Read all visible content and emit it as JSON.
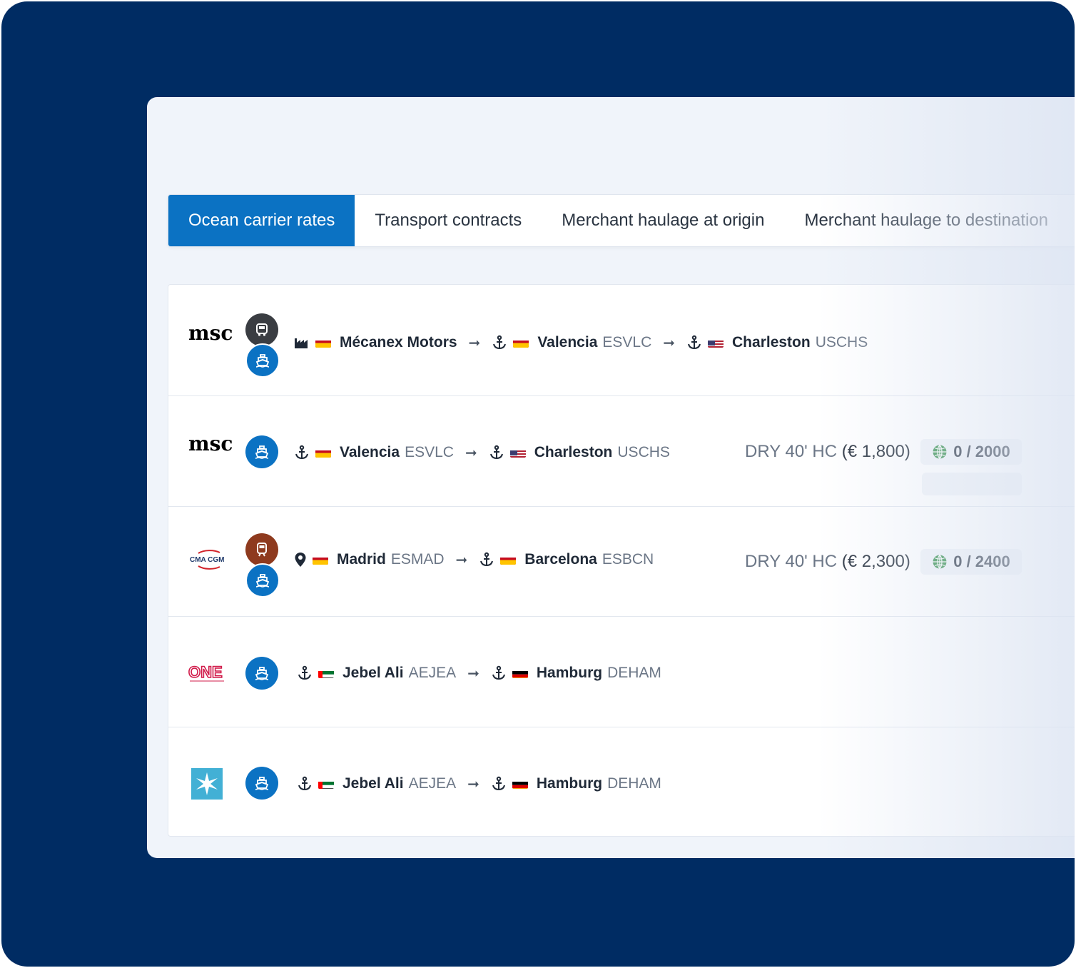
{
  "tabs": [
    {
      "label": "Ocean carrier rates",
      "active": true
    },
    {
      "label": "Transport contracts",
      "active": false
    },
    {
      "label": "Merchant haulage at origin",
      "active": false
    },
    {
      "label": "Merchant haulage to destination",
      "active": false
    }
  ],
  "rows": [
    {
      "carrier": "msc",
      "modes": [
        "truck-icon",
        "ship-icon"
      ],
      "origin": {
        "icon": "factory-icon",
        "flag": "es",
        "name": "Mécanex Motors",
        "code": ""
      },
      "via": {
        "icon": "anchor-icon",
        "flag": "es",
        "name": "Valencia",
        "code": "ESVLC"
      },
      "destination": {
        "icon": "anchor-icon",
        "flag": "us",
        "name": "Charleston",
        "code": "USCHS"
      }
    },
    {
      "carrier": "msc",
      "modes": [
        "ship-icon"
      ],
      "origin": {
        "icon": "anchor-icon",
        "flag": "es",
        "name": "Valencia",
        "code": "ESVLC"
      },
      "destination": {
        "icon": "anchor-icon",
        "flag": "us",
        "name": "Charleston",
        "code": "USCHS"
      },
      "equipment": "DRY 40' HC",
      "price": "(€ 1,800)",
      "allocation": "0 / 2000"
    },
    {
      "carrier": "cma-cgm",
      "modes": [
        "train-icon",
        "ship-icon"
      ],
      "origin": {
        "icon": "pin-icon",
        "flag": "es",
        "name": "Madrid",
        "code": "ESMAD"
      },
      "destination": {
        "icon": "anchor-icon",
        "flag": "es",
        "name": "Barcelona",
        "code": "ESBCN"
      },
      "equipment": "DRY 40' HC",
      "price": "(€ 2,300)",
      "allocation": "0 / 2400"
    },
    {
      "carrier": "one",
      "modes": [
        "ship-icon"
      ],
      "origin": {
        "icon": "anchor-icon",
        "flag": "ae",
        "name": "Jebel Ali",
        "code": "AEJEA"
      },
      "destination": {
        "icon": "anchor-icon",
        "flag": "de",
        "name": "Hamburg",
        "code": "DEHAM"
      }
    },
    {
      "carrier": "maersk",
      "modes": [
        "ship-icon"
      ],
      "origin": {
        "icon": "anchor-icon",
        "flag": "ae",
        "name": "Jebel Ali",
        "code": "AEJEA"
      },
      "destination": {
        "icon": "anchor-icon",
        "flag": "de",
        "name": "Hamburg",
        "code": "DEHAM"
      }
    }
  ],
  "logos": {
    "msc": "msc",
    "cma": "CMA CGM",
    "one": "ONE"
  },
  "colors": {
    "background": "#002c63",
    "accent": "#0b72c3",
    "truck_badge": "#3a3d42",
    "train_badge": "#8e3a1e"
  }
}
